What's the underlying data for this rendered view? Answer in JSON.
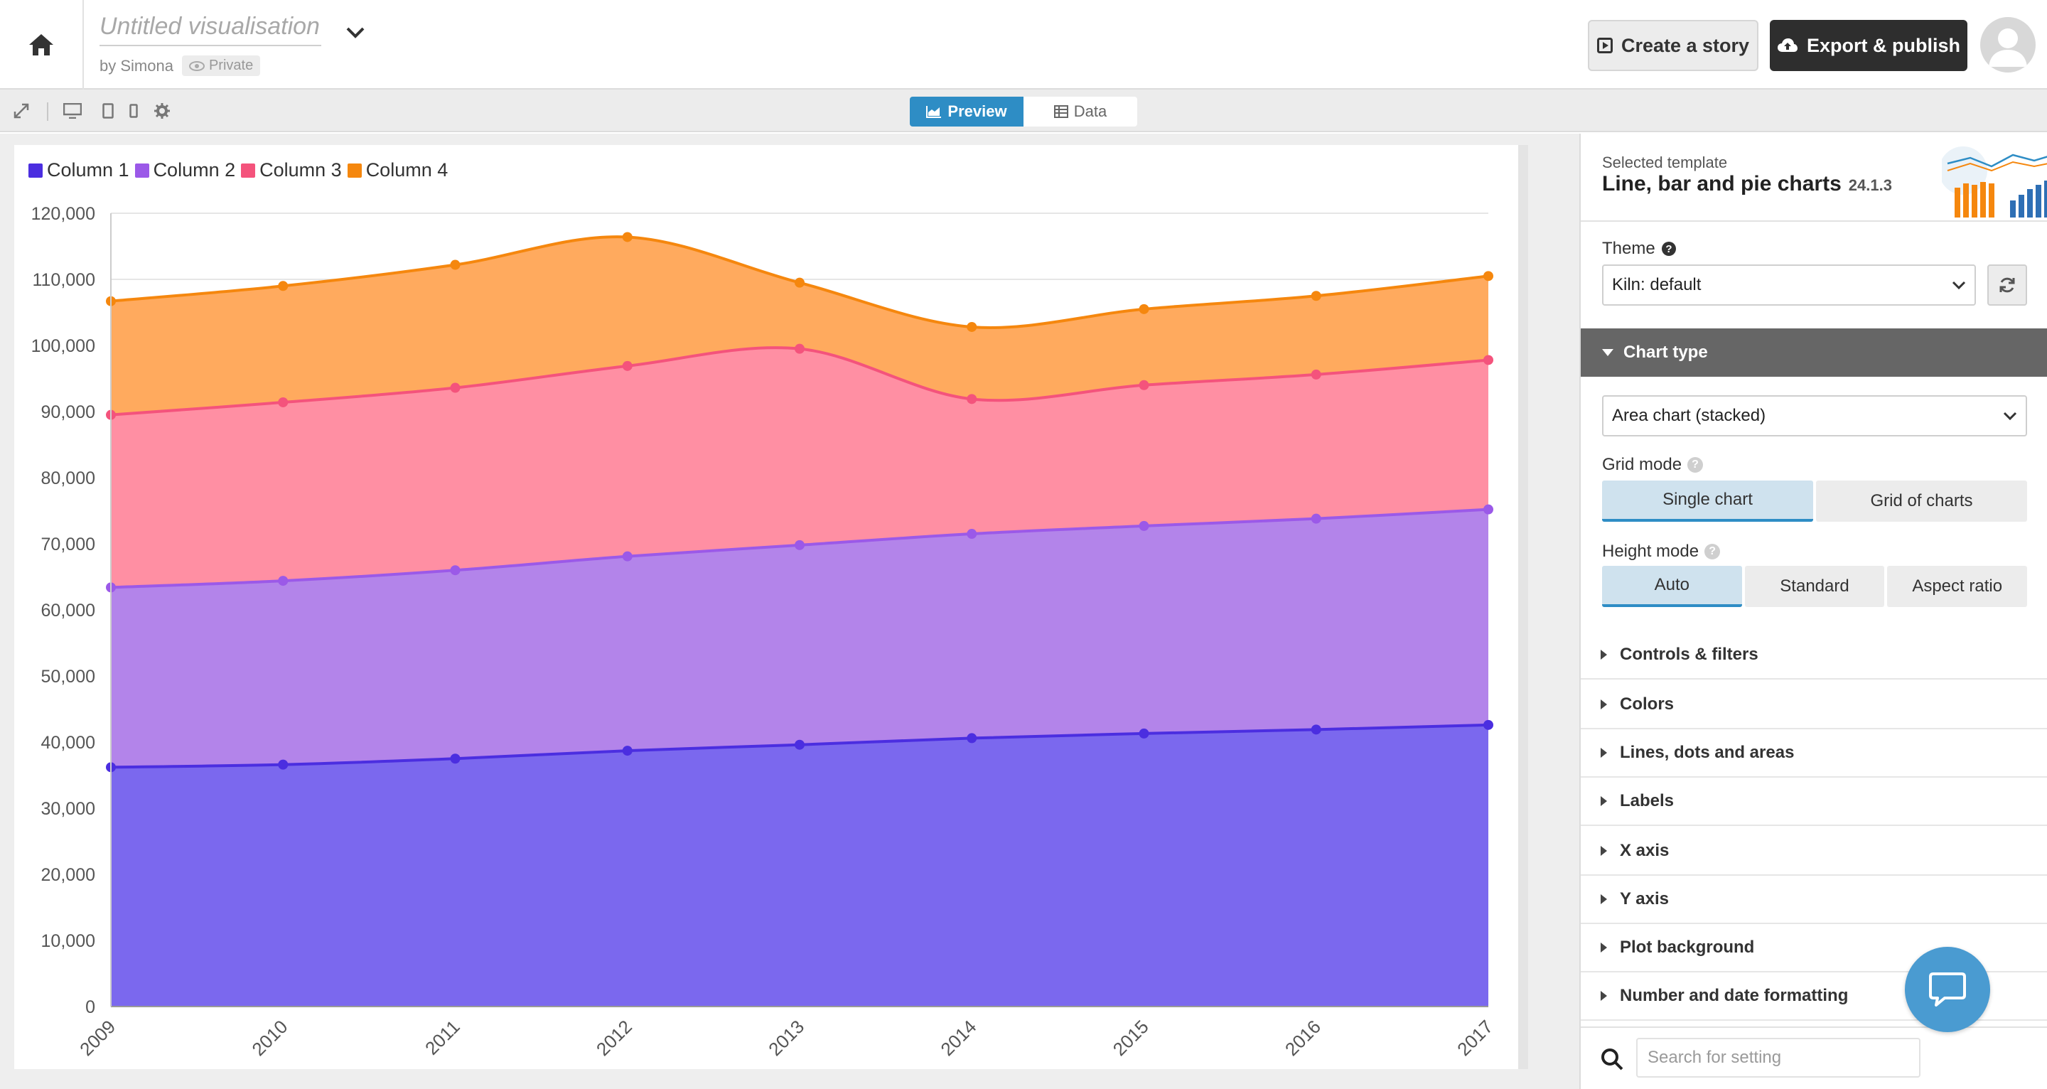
{
  "header": {
    "title_placeholder": "Untitled visualisation",
    "byline": "by Simona",
    "privacy": "Private",
    "create_story": "Create a story",
    "export_publish": "Export & publish"
  },
  "toolbar": {
    "tabs": [
      {
        "label": "Preview",
        "active": true
      },
      {
        "label": "Data",
        "active": false
      }
    ]
  },
  "sidebar": {
    "template_label": "Selected template",
    "template_name": "Line, bar and pie charts",
    "template_version": "24.1.3",
    "theme_label": "Theme",
    "theme_value": "Kiln: default",
    "section_chart_type": "Chart type",
    "chart_type_value": "Area chart (stacked)",
    "grid_mode_label": "Grid mode",
    "grid_mode_options": [
      {
        "label": "Single chart",
        "selected": true
      },
      {
        "label": "Grid of charts",
        "selected": false
      }
    ],
    "height_mode_label": "Height mode",
    "height_mode_options": [
      {
        "label": "Auto",
        "selected": true
      },
      {
        "label": "Standard",
        "selected": false
      },
      {
        "label": "Aspect ratio",
        "selected": false
      }
    ],
    "sections": [
      "Controls & filters",
      "Colors",
      "Lines, dots and areas",
      "Labels",
      "X axis",
      "Y axis",
      "Plot background",
      "Number and date formatting"
    ],
    "search_placeholder": "Search for setting"
  },
  "colors": {
    "accent": "#2e8dc5",
    "dark_button": "#2e2e2e"
  },
  "chart_data": {
    "type": "area",
    "stacked": true,
    "x": [
      "2009",
      "2010",
      "2011",
      "2012",
      "2013",
      "2014",
      "2015",
      "2016",
      "2017"
    ],
    "series": [
      {
        "name": "Column 1",
        "color": "#4b2ee0",
        "fill": "#7b68ee",
        "values": [
          36200,
          36600,
          37500,
          38700,
          39600,
          40600,
          41300,
          41900,
          42600
        ]
      },
      {
        "name": "Column 2",
        "color": "#9b59e8",
        "fill": "#b384ea",
        "values": [
          27200,
          27800,
          28500,
          29400,
          30200,
          30900,
          31400,
          31900,
          32600
        ]
      },
      {
        "name": "Column 3",
        "color": "#f4537c",
        "fill": "#ff8fa3",
        "values": [
          26100,
          27000,
          27600,
          28800,
          29700,
          20400,
          21300,
          21800,
          22600
        ]
      },
      {
        "name": "Column 4",
        "color": "#f5870e",
        "fill": "#ffaa5e",
        "values": [
          17200,
          17600,
          18600,
          19500,
          10000,
          10900,
          11500,
          11900,
          12700
        ]
      }
    ],
    "ylim": [
      0,
      120000
    ],
    "yticks": [
      "0",
      "10,000",
      "20,000",
      "30,000",
      "40,000",
      "50,000",
      "60,000",
      "70,000",
      "80,000",
      "90,000",
      "100,000",
      "110,000",
      "120,000"
    ],
    "grid": true,
    "legend": "top-left"
  }
}
